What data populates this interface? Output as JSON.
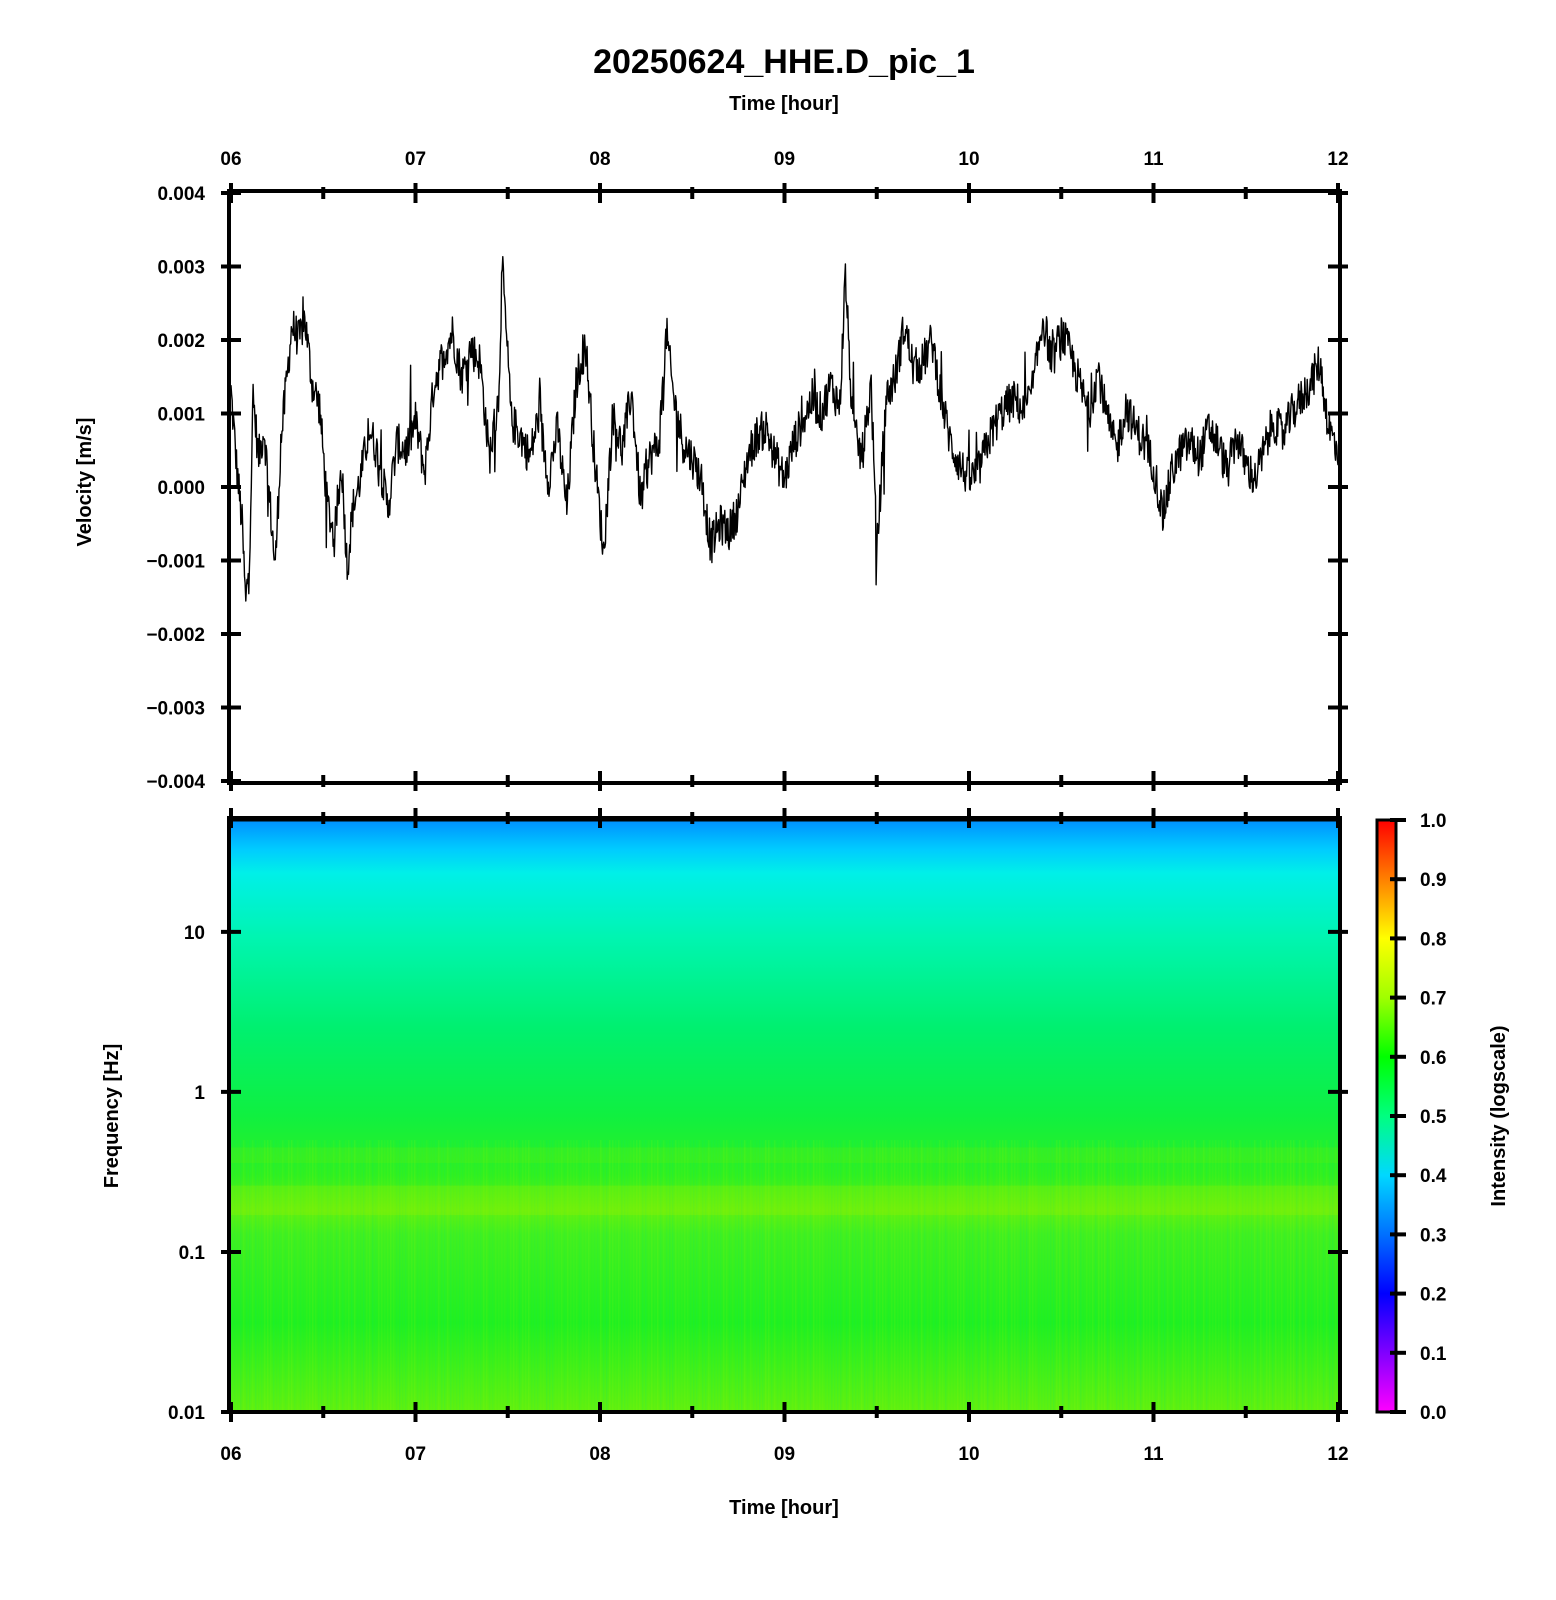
{
  "title": "20250624_HHE.D_pic_1",
  "top_axis_label": "Time [hour]",
  "bottom_axis_label": "Time [hour]",
  "colorbar_label": "Intensity (logscale)",
  "chart_data": [
    {
      "type": "line",
      "name": "waveform",
      "xlabel": "Time [hour]",
      "ylabel": "Velocity [m/s]",
      "x_ticks": [
        "06",
        "07",
        "08",
        "09",
        "10",
        "11",
        "12"
      ],
      "xlim": [
        6,
        12
      ],
      "y_ticks": [
        "0.004",
        "0.003",
        "0.002",
        "0.001",
        "0.000",
        "−0.001",
        "−0.002",
        "−0.003",
        "−0.004"
      ],
      "ylim": [
        -0.004,
        0.004
      ],
      "color": "#000000",
      "series": [
        {
          "x": [
            6.0,
            6.03,
            6.06,
            6.08,
            6.1,
            6.12,
            6.15,
            6.18,
            6.2,
            6.24,
            6.27,
            6.3,
            6.33,
            6.37,
            6.4,
            6.44,
            6.48,
            6.52,
            6.56,
            6.6,
            6.63,
            6.66,
            6.7,
            6.75,
            6.8,
            6.85,
            6.9,
            6.95,
            7.0,
            7.05,
            7.1,
            7.15,
            7.2,
            7.25,
            7.3,
            7.35,
            7.4,
            7.45,
            7.47,
            7.52,
            7.57,
            7.62,
            7.67,
            7.72,
            7.77,
            7.82,
            7.87,
            7.92,
            7.97,
            8.02,
            8.07,
            8.12,
            8.17,
            8.22,
            8.27,
            8.32,
            8.36,
            8.4,
            8.45,
            8.5,
            8.55,
            8.6,
            8.65,
            8.7,
            8.75,
            8.8,
            8.85,
            8.9,
            8.95,
            9.0,
            9.05,
            9.1,
            9.15,
            9.2,
            9.25,
            9.3,
            9.33,
            9.37,
            9.42,
            9.47,
            9.5,
            9.55,
            9.6,
            9.65,
            9.7,
            9.75,
            9.8,
            9.85,
            9.9,
            9.95,
            10.0,
            10.05,
            10.1,
            10.15,
            10.2,
            10.25,
            10.3,
            10.35,
            10.4,
            10.45,
            10.5,
            10.55,
            10.6,
            10.65,
            10.7,
            10.75,
            10.8,
            10.85,
            10.9,
            10.95,
            11.0,
            11.05,
            11.1,
            11.15,
            11.2,
            11.25,
            11.3,
            11.35,
            11.4,
            11.45,
            11.5,
            11.55,
            11.6,
            11.65,
            11.7,
            11.75,
            11.8,
            11.85,
            11.9,
            11.95,
            12.0
          ],
          "y": [
            0.0013,
            0.0003,
            -0.0005,
            -0.0016,
            -0.0009,
            0.0012,
            0.0004,
            0.0008,
            0.0001,
            -0.0011,
            0.0006,
            0.0014,
            0.0022,
            0.002,
            0.0023,
            0.0014,
            0.0011,
            -0.0002,
            -0.0007,
            0.0003,
            -0.0011,
            -0.0003,
            0.0001,
            0.0008,
            0.0004,
            -0.0003,
            0.0006,
            0.0005,
            0.0009,
            0.0002,
            0.0014,
            0.0018,
            0.0021,
            0.0015,
            0.0019,
            0.0017,
            0.0004,
            0.0012,
            0.003,
            0.0009,
            0.0007,
            0.0004,
            0.001,
            0.0001,
            0.0008,
            -0.0003,
            0.0014,
            0.002,
            0.0004,
            -0.0009,
            0.001,
            0.0005,
            0.0013,
            -0.0002,
            0.0004,
            0.0006,
            0.0021,
            0.0012,
            0.0006,
            0.0004,
            0.0001,
            -0.0008,
            -0.0005,
            -0.0006,
            -0.0003,
            0.0004,
            0.0007,
            0.0008,
            0.0004,
            0.0001,
            0.0006,
            0.0009,
            0.0012,
            0.001,
            0.0014,
            0.0011,
            0.0029,
            0.0008,
            0.0004,
            0.0014,
            -0.0009,
            0.0012,
            0.0015,
            0.0022,
            0.0016,
            0.0017,
            0.002,
            0.0012,
            0.0006,
            0.0003,
            0.0001,
            0.0002,
            0.0006,
            0.0009,
            0.0011,
            0.0012,
            0.001,
            0.0014,
            0.0023,
            0.0017,
            0.0021,
            0.0018,
            0.0014,
            0.001,
            0.0016,
            0.0009,
            0.0005,
            0.0011,
            0.0008,
            0.0006,
            0.0003,
            -0.0004,
            0.0002,
            0.0005,
            0.0006,
            0.0004,
            0.0008,
            0.0006,
            0.0002,
            0.0007,
            0.0003,
            0.0001,
            0.0005,
            0.0009,
            0.0007,
            0.001,
            0.0012,
            0.0014,
            0.0017,
            0.0008,
            0.0005
          ]
        }
      ]
    },
    {
      "type": "heatmap",
      "name": "spectrogram",
      "xlabel": "Time [hour]",
      "ylabel": "Frequency [Hz]",
      "x_ticks": [
        "06",
        "07",
        "08",
        "09",
        "10",
        "11",
        "12"
      ],
      "xlim": [
        6,
        12
      ],
      "y_ticks": [
        "10",
        "1",
        "0.1",
        "0.01"
      ],
      "ylim": [
        0.01,
        50
      ],
      "y_scale": "log",
      "colorbar": {
        "label": "Intensity (logscale)",
        "ticks": [
          "1.0",
          "0.9",
          "0.8",
          "0.7",
          "0.6",
          "0.5",
          "0.4",
          "0.3",
          "0.2",
          "0.1",
          "0.0"
        ],
        "range": [
          0,
          1
        ]
      },
      "intensity_profile": [
        {
          "frequency": 50,
          "intensity": 0.33
        },
        {
          "frequency": 30,
          "intensity": 0.38
        },
        {
          "frequency": 20,
          "intensity": 0.42
        },
        {
          "frequency": 10,
          "intensity": 0.46
        },
        {
          "frequency": 3,
          "intensity": 0.51
        },
        {
          "frequency": 1,
          "intensity": 0.56
        },
        {
          "frequency": 0.4,
          "intensity": 0.62
        },
        {
          "frequency": 0.2,
          "intensity": 0.63
        },
        {
          "frequency": 0.1,
          "intensity": 0.59
        },
        {
          "frequency": 0.03,
          "intensity": 0.61
        },
        {
          "frequency": 0.01,
          "intensity": 0.65
        }
      ]
    }
  ]
}
